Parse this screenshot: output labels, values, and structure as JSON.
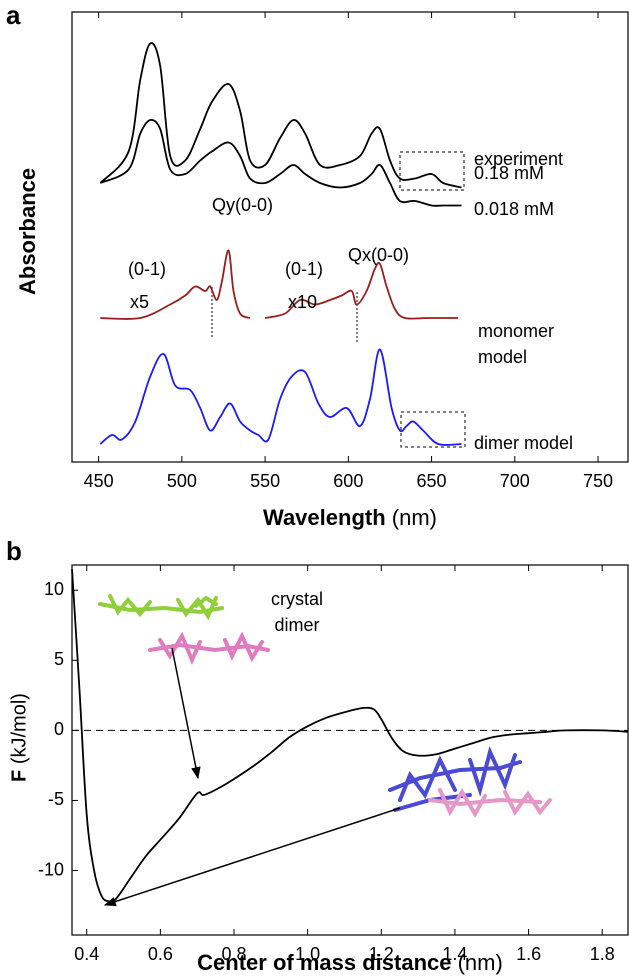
{
  "chart_data": [
    {
      "type": "line",
      "panel_label": "a",
      "y_label": "Absorbance",
      "x_label": {
        "text": "Wavelength",
        "unit": "(nm)"
      },
      "xlim": [
        434,
        768
      ],
      "xticks": [
        450,
        500,
        550,
        600,
        650,
        700,
        750
      ],
      "ylim": [
        0,
        10
      ],
      "series": [
        {
          "name": "0.18 mM",
          "color": "#000000",
          "x": [
            451,
            468,
            475,
            481,
            487,
            493,
            502,
            511,
            518,
            528,
            535,
            541,
            550,
            559,
            567,
            574,
            583,
            595,
            607,
            614,
            619,
            625,
            631,
            640,
            650,
            657,
            668
          ],
          "values": [
            6.2,
            6.9,
            8.5,
            9.3,
            8.8,
            6.8,
            6.7,
            7.4,
            8.0,
            8.4,
            7.8,
            6.7,
            6.6,
            7.2,
            7.6,
            7.3,
            6.6,
            6.6,
            6.8,
            7.3,
            7.4,
            6.7,
            6.3,
            6.3,
            6.4,
            6.2,
            6.1
          ]
        },
        {
          "name": "0.018 mM",
          "color": "#000000",
          "x": [
            451,
            468,
            475,
            481,
            487,
            493,
            502,
            511,
            518,
            528,
            535,
            541,
            550,
            559,
            567,
            574,
            583,
            595,
            607,
            614,
            619,
            625,
            631,
            640,
            650,
            657,
            668
          ],
          "values": [
            6.2,
            6.5,
            7.3,
            7.6,
            7.4,
            6.5,
            6.4,
            6.7,
            6.9,
            7.1,
            6.8,
            6.3,
            6.2,
            6.4,
            6.6,
            6.4,
            6.2,
            6.1,
            6.2,
            6.4,
            6.6,
            6.2,
            5.8,
            5.8,
            5.7,
            5.7,
            5.7
          ]
        },
        {
          "name": "monomer model",
          "color": "#9b1c1c",
          "x": [
            451,
            475,
            493,
            502,
            508,
            514,
            517,
            521,
            524,
            528,
            531,
            535,
            541,
            545,
            550,
            562,
            571,
            580,
            589,
            596,
            602,
            605,
            611,
            616,
            619,
            623,
            628,
            634,
            648,
            666
          ],
          "values": [
            3.2,
            3.2,
            3.5,
            3.7,
            3.9,
            3.8,
            3.9,
            3.6,
            4.0,
            4.7,
            3.8,
            3.3,
            3.2,
            null,
            3.2,
            3.3,
            3.6,
            3.5,
            3.6,
            3.7,
            3.8,
            3.5,
            3.8,
            4.3,
            4.4,
            3.9,
            3.4,
            3.2,
            3.2,
            3.2
          ]
        },
        {
          "name": "dimer model",
          "color": "#1a1aff",
          "x": [
            451,
            458,
            464,
            472,
            481,
            489,
            496,
            505,
            511,
            517,
            523,
            529,
            535,
            541,
            546,
            552,
            559,
            566,
            574,
            582,
            589,
            599,
            607,
            613,
            619,
            626,
            631,
            635,
            639,
            645,
            654,
            668
          ],
          "values": [
            0.4,
            0.6,
            0.5,
            0.9,
            1.9,
            2.4,
            1.7,
            1.6,
            1.2,
            0.7,
            1.0,
            1.3,
            0.9,
            0.7,
            0.6,
            0.5,
            1.4,
            1.9,
            2.0,
            1.3,
            1.0,
            1.2,
            0.8,
            1.4,
            2.5,
            1.2,
            0.7,
            0.8,
            0.9,
            0.7,
            0.4,
            0.4
          ]
        }
      ],
      "annotations": [
        "experiment",
        "(0-1)",
        "x5",
        "Qy(0-0)",
        "(0-1)",
        "x10",
        "Qx(0-0)"
      ]
    },
    {
      "type": "line",
      "panel_label": "b",
      "y_label": {
        "text": "F",
        "unit": "(kJ/mol)"
      },
      "x_label": {
        "text": "Center of mass distance",
        "unit": "(nm)"
      },
      "xlim": [
        0.36,
        1.87
      ],
      "xticks": [
        0.4,
        0.6,
        0.8,
        {
          "value": 1,
          "label": "1.0"
        },
        1.2,
        1.4,
        1.6,
        1.8
      ],
      "ylim": [
        -14.6,
        11.8
      ],
      "yticks": [
        10,
        5,
        0,
        -5,
        -10
      ],
      "reference_line_y": 0,
      "series": [
        {
          "color": "#000000",
          "x": [
            0.36,
            0.38,
            0.4,
            0.42,
            0.44,
            0.46,
            0.48,
            0.52,
            0.56,
            0.6,
            0.65,
            0.7,
            0.72,
            0.78,
            0.85,
            0.9,
            0.95,
            1.0,
            1.05,
            1.1,
            1.15,
            1.18,
            1.2,
            1.23,
            1.26,
            1.3,
            1.35,
            1.4,
            1.45,
            1.5,
            1.55,
            1.6,
            1.65,
            1.7,
            1.8,
            1.87
          ],
          "values": [
            11.5,
            3,
            -6,
            -10,
            -11.8,
            -12.2,
            -12,
            -10.5,
            -9,
            -7.8,
            -6.3,
            -4.5,
            -4.6,
            -3.8,
            -2.6,
            -1.6,
            -0.5,
            0.3,
            0.9,
            1.3,
            1.6,
            1.5,
            0.8,
            -0.6,
            -1.5,
            -1.8,
            -1.7,
            -1.3,
            -0.9,
            -0.5,
            -0.3,
            -0.2,
            -0.1,
            0,
            0,
            -0.1
          ]
        }
      ],
      "annotations": [
        "crystal dimer"
      ]
    }
  ]
}
